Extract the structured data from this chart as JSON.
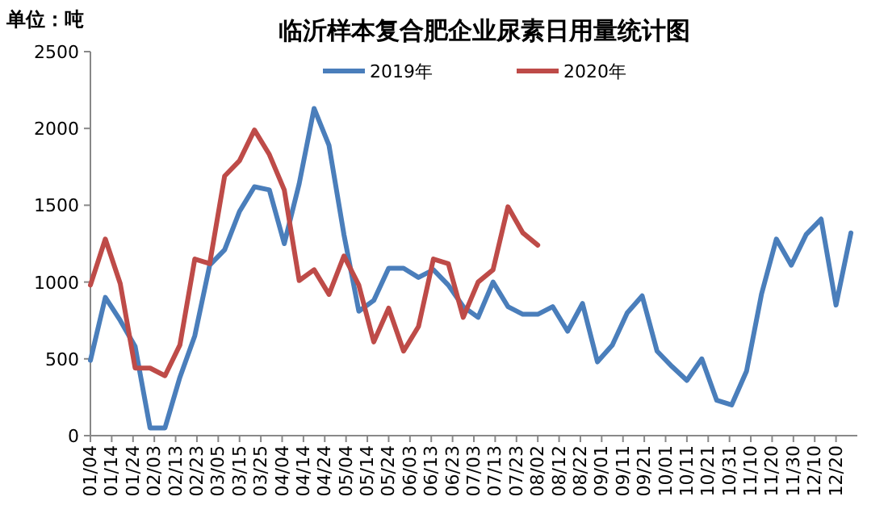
{
  "chart_data": {
    "type": "line",
    "title": "临沂样本复合肥企业尿素日用量统计图",
    "ylabel": "单位：吨",
    "legend": "top",
    "x": [
      "--01-04",
      "--01-11",
      "--01-18",
      "--01-25",
      "--02-01",
      "--02-08",
      "--02-15",
      "--02-22",
      "--03-01",
      "--03-08",
      "--03-15",
      "--03-22",
      "--03-29",
      "--04-05",
      "--04-12",
      "--04-19",
      "--04-26",
      "--05-03",
      "--05-10",
      "--05-17",
      "--05-24",
      "--05-31",
      "--06-07",
      "--06-14",
      "--06-21",
      "--06-28",
      "--07-05",
      "--07-12",
      "--07-19",
      "--07-26",
      "--08-02",
      "--08-09",
      "--08-16",
      "--08-23",
      "--08-30",
      "--09-06",
      "--09-13",
      "--09-20",
      "--09-27",
      "--10-04",
      "--10-11",
      "--10-18",
      "--10-25",
      "--11-01",
      "--11-08",
      "--11-15",
      "--11-22",
      "--11-29",
      "--12-06",
      "--12-13",
      "--12-20",
      "--12-27"
    ],
    "xlim": [
      "--01-04",
      "--12-30"
    ],
    "xticks": [
      {
        "value": "--01-04",
        "label": "01/04"
      },
      {
        "value": "--01-14",
        "label": "01/14"
      },
      {
        "value": "--01-24",
        "label": "01/24"
      },
      {
        "value": "--02-03",
        "label": "02/03"
      },
      {
        "value": "--02-13",
        "label": "02/13"
      },
      {
        "value": "--02-23",
        "label": "02/23"
      },
      {
        "value": "--03-05",
        "label": "03/05"
      },
      {
        "value": "--03-15",
        "label": "03/15"
      },
      {
        "value": "--03-25",
        "label": "03/25"
      },
      {
        "value": "--04-04",
        "label": "04/04"
      },
      {
        "value": "--04-14",
        "label": "04/14"
      },
      {
        "value": "--04-24",
        "label": "04/24"
      },
      {
        "value": "--05-04",
        "label": "05/04"
      },
      {
        "value": "--05-14",
        "label": "05/14"
      },
      {
        "value": "--05-24",
        "label": "05/24"
      },
      {
        "value": "--06-03",
        "label": "06/03"
      },
      {
        "value": "--06-13",
        "label": "06/13"
      },
      {
        "value": "--06-23",
        "label": "06/23"
      },
      {
        "value": "--07-03",
        "label": "07/03"
      },
      {
        "value": "--07-13",
        "label": "07/13"
      },
      {
        "value": "--07-23",
        "label": "07/23"
      },
      {
        "value": "--08-02",
        "label": "08/02"
      },
      {
        "value": "--08-12",
        "label": "08/12"
      },
      {
        "value": "--08-22",
        "label": "08/22"
      },
      {
        "value": "--09-01",
        "label": "09/01"
      },
      {
        "value": "--09-11",
        "label": "09/11"
      },
      {
        "value": "--09-21",
        "label": "09/21"
      },
      {
        "value": "--10-01",
        "label": "10/01"
      },
      {
        "value": "--10-11",
        "label": "10/11"
      },
      {
        "value": "--10-21",
        "label": "10/21"
      },
      {
        "value": "--10-31",
        "label": "10/31"
      },
      {
        "value": "--11-10",
        "label": "11/10"
      },
      {
        "value": "--11-20",
        "label": "11/20"
      },
      {
        "value": "--11-30",
        "label": "11/30"
      },
      {
        "value": "--12-10",
        "label": "12/10"
      },
      {
        "value": "--12-20",
        "label": "12/20"
      }
    ],
    "ylim": [
      0,
      2500
    ],
    "yticks": [
      0,
      500,
      1000,
      1500,
      2000,
      2500
    ],
    "series": [
      {
        "name": "2019年",
        "color": "#4a7ebb",
        "values": [
          490,
          900,
          750,
          580,
          50,
          50,
          380,
          650,
          1110,
          1210,
          1460,
          1620,
          1600,
          1250,
          1640,
          2130,
          1890,
          1310,
          810,
          880,
          1090,
          1090,
          1030,
          1080,
          980,
          840,
          770,
          1000,
          840,
          790,
          790,
          840,
          680,
          860,
          480,
          590,
          800,
          910,
          550,
          450,
          360,
          500,
          230,
          200,
          420,
          920,
          1280,
          1110,
          1310,
          1410,
          850,
          1320
        ]
      },
      {
        "name": "2020年",
        "color": "#be4b48",
        "x": [
          "--01-04",
          "--01-11",
          "--01-18",
          "--01-25",
          "--02-01",
          "--02-08",
          "--02-15",
          "--02-22",
          "--03-01",
          "--03-08",
          "--03-15",
          "--03-22",
          "--03-29",
          "--04-05",
          "--04-12",
          "--04-19",
          "--04-26",
          "--05-03",
          "--05-10",
          "--05-17",
          "--05-24",
          "--05-31",
          "--06-07",
          "--06-14",
          "--06-21",
          "--06-28",
          "--07-05",
          "--07-12",
          "--07-19",
          "--07-26",
          "--08-02"
        ],
        "values": [
          980,
          1280,
          990,
          440,
          440,
          390,
          590,
          1150,
          1120,
          1690,
          1790,
          1990,
          1830,
          1600,
          1010,
          1080,
          920,
          1170,
          980,
          610,
          830,
          550,
          710,
          1150,
          1120,
          770,
          1000,
          1080,
          1490,
          1320,
          1240
        ]
      }
    ]
  }
}
